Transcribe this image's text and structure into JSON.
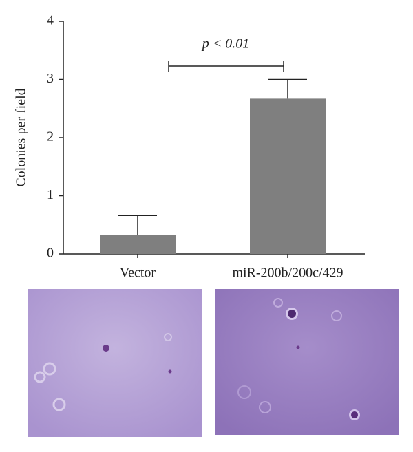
{
  "chart_data": {
    "type": "bar",
    "y_label": "Colonies per field",
    "categories": [
      "Vector",
      "miR-200b/200c/429"
    ],
    "values": [
      0.33,
      2.67
    ],
    "errors": [
      0.33,
      0.33
    ],
    "color": "#7f7f7f",
    "ylim": [
      0,
      4
    ],
    "yticks": [
      0,
      1,
      2,
      3,
      4
    ],
    "annotation": "p < 0.01"
  }
}
